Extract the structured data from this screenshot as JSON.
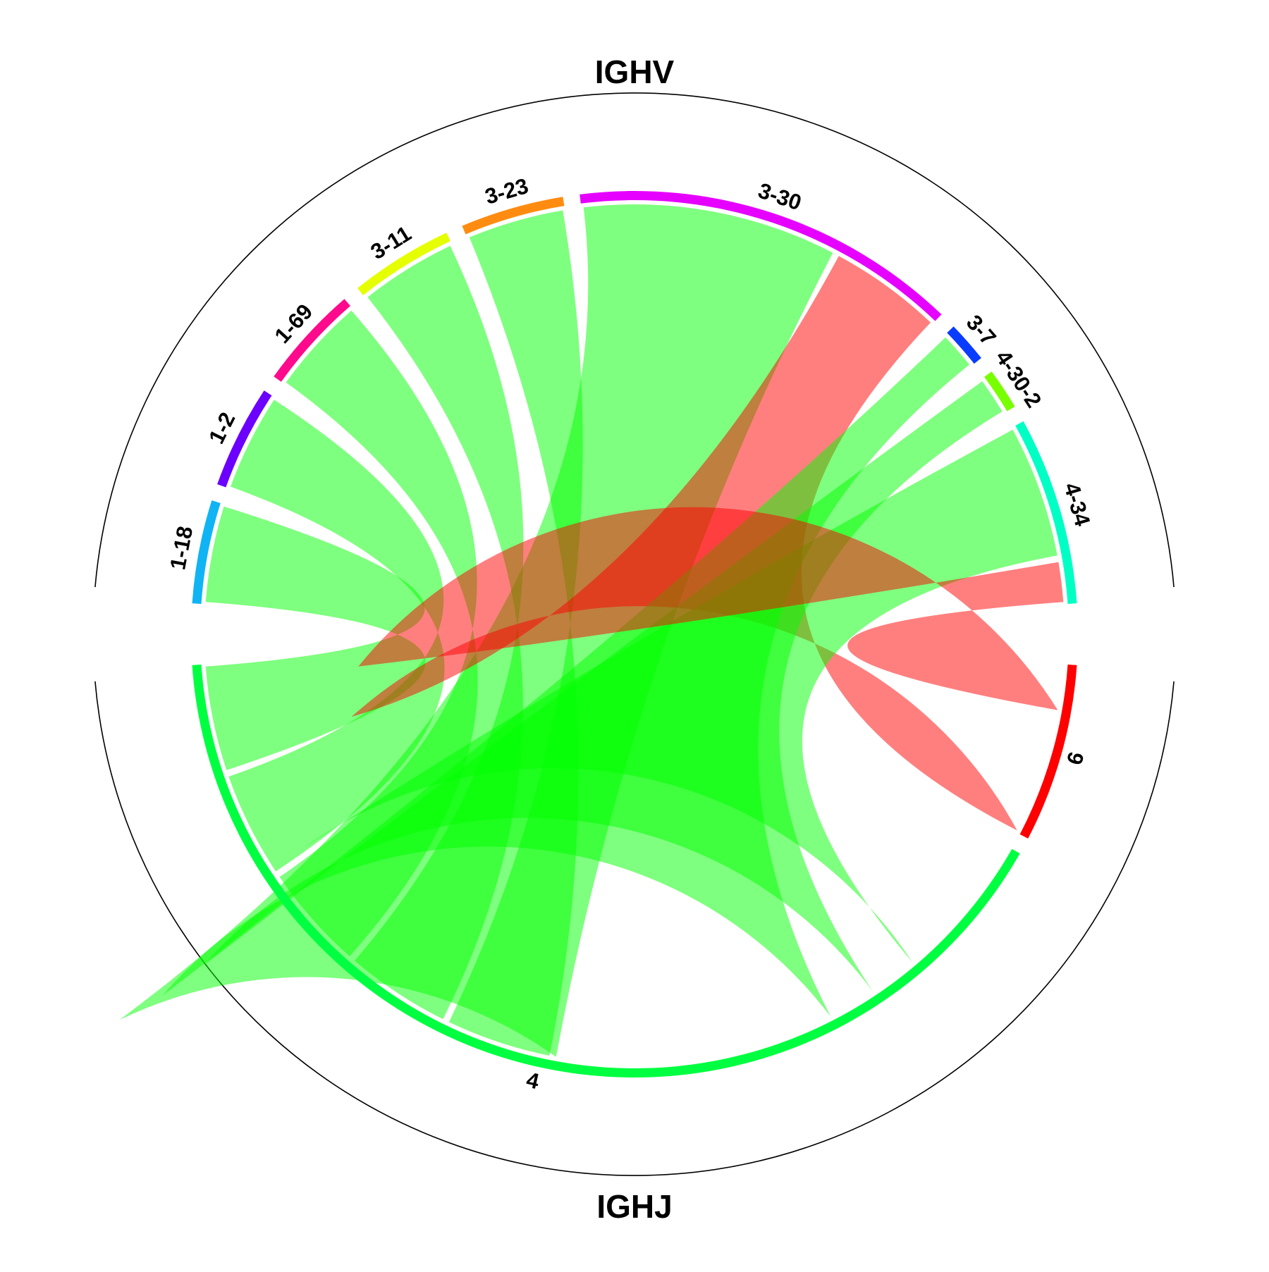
{
  "chart_data": {
    "type": "chord",
    "group_labels": {
      "top": "IGHV",
      "bottom": "IGHJ"
    },
    "sources": [
      {
        "label": "1-18",
        "color": "#10b4f4"
      },
      {
        "label": "1-2",
        "color": "#6b00ff"
      },
      {
        "label": "1-69",
        "color": "#ff0a8c"
      },
      {
        "label": "3-11",
        "color": "#e5ff00"
      },
      {
        "label": "3-23",
        "color": "#ff8c10"
      },
      {
        "label": "3-30",
        "color": "#e600ff"
      },
      {
        "label": "3-7",
        "color": "#0a3cff"
      },
      {
        "label": "4-30-2",
        "color": "#78ff00"
      },
      {
        "label": "4-34",
        "color": "#00ffc4"
      }
    ],
    "targets": [
      {
        "label": "6",
        "color": "#ff0000"
      },
      {
        "label": "4",
        "color": "#00ff40"
      }
    ],
    "links": [
      {
        "source": "1-18",
        "target": "4",
        "value": 1
      },
      {
        "source": "1-2",
        "target": "4",
        "value": 1
      },
      {
        "source": "1-69",
        "target": "4",
        "value": 1
      },
      {
        "source": "3-11",
        "target": "4",
        "value": 1
      },
      {
        "source": "3-23",
        "target": "4",
        "value": 1
      },
      {
        "source": "3-30",
        "target": "4",
        "value": 2.6
      },
      {
        "source": "3-30",
        "target": "6",
        "value": 1.15
      },
      {
        "source": "3-7",
        "target": "4",
        "value": 0.4
      },
      {
        "source": "4-30-2",
        "target": "4",
        "value": 0.4
      },
      {
        "source": "4-34",
        "target": "4",
        "value": 1.4
      },
      {
        "source": "4-34",
        "target": "6",
        "value": 0.42
      }
    ],
    "link_colors": {
      "6": "#ff0000",
      "4": "#00ff00"
    }
  }
}
